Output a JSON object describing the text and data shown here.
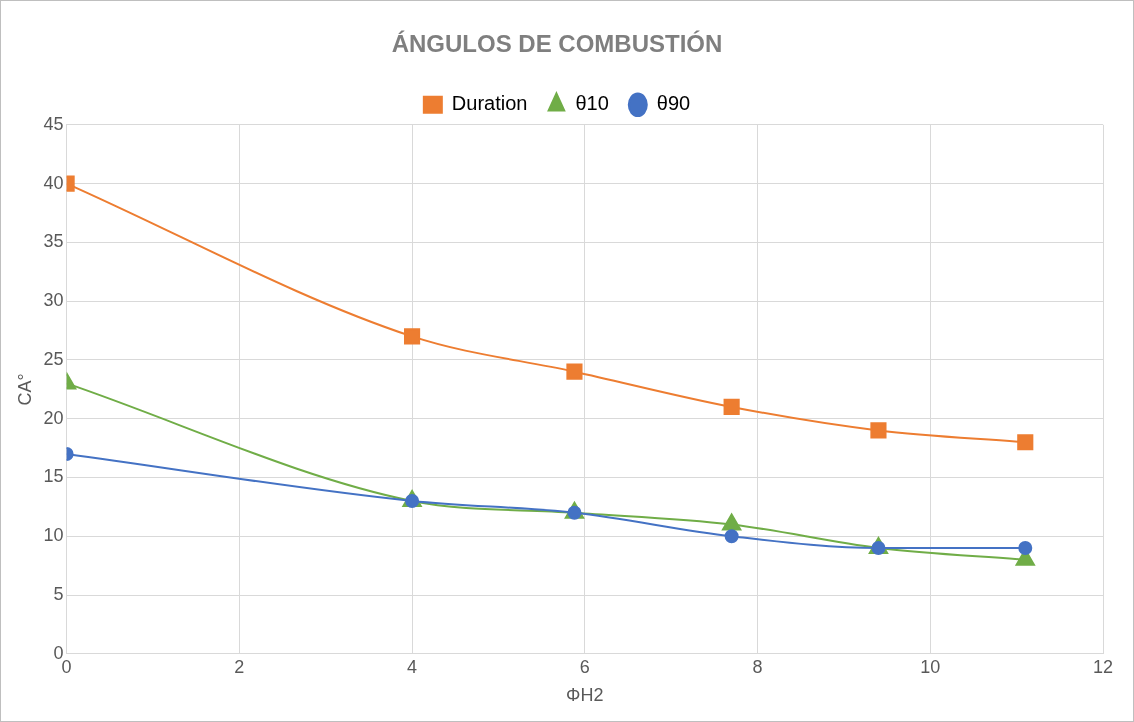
{
  "chart_data": {
    "type": "line",
    "title": "ÁNGULOS DE COMBUSTIÓN",
    "xlabel": "ΦH2",
    "ylabel": "CA°",
    "x": [
      0,
      4,
      5.88,
      7.7,
      9.4,
      11.1
    ],
    "series": [
      {
        "name": "Duration",
        "color": "#ed7d31",
        "marker": "square",
        "values": [
          40,
          27,
          24,
          21,
          19,
          18
        ]
      },
      {
        "name": "θ10",
        "color": "#70ad47",
        "marker": "triangle",
        "values": [
          23,
          13,
          12,
          11,
          9,
          8
        ]
      },
      {
        "name": "θ90",
        "color": "#4472c4",
        "marker": "circle",
        "values": [
          17,
          13,
          12,
          10,
          9,
          9
        ]
      }
    ],
    "xlim": [
      0,
      12
    ],
    "xticks": [
      0,
      2,
      4,
      6,
      8,
      10,
      12
    ],
    "ylim": [
      0,
      45
    ],
    "yticks": [
      0,
      5,
      10,
      15,
      20,
      25,
      30,
      35,
      40,
      45
    ],
    "grid": true,
    "legend": "top",
    "line_style": "solid"
  }
}
